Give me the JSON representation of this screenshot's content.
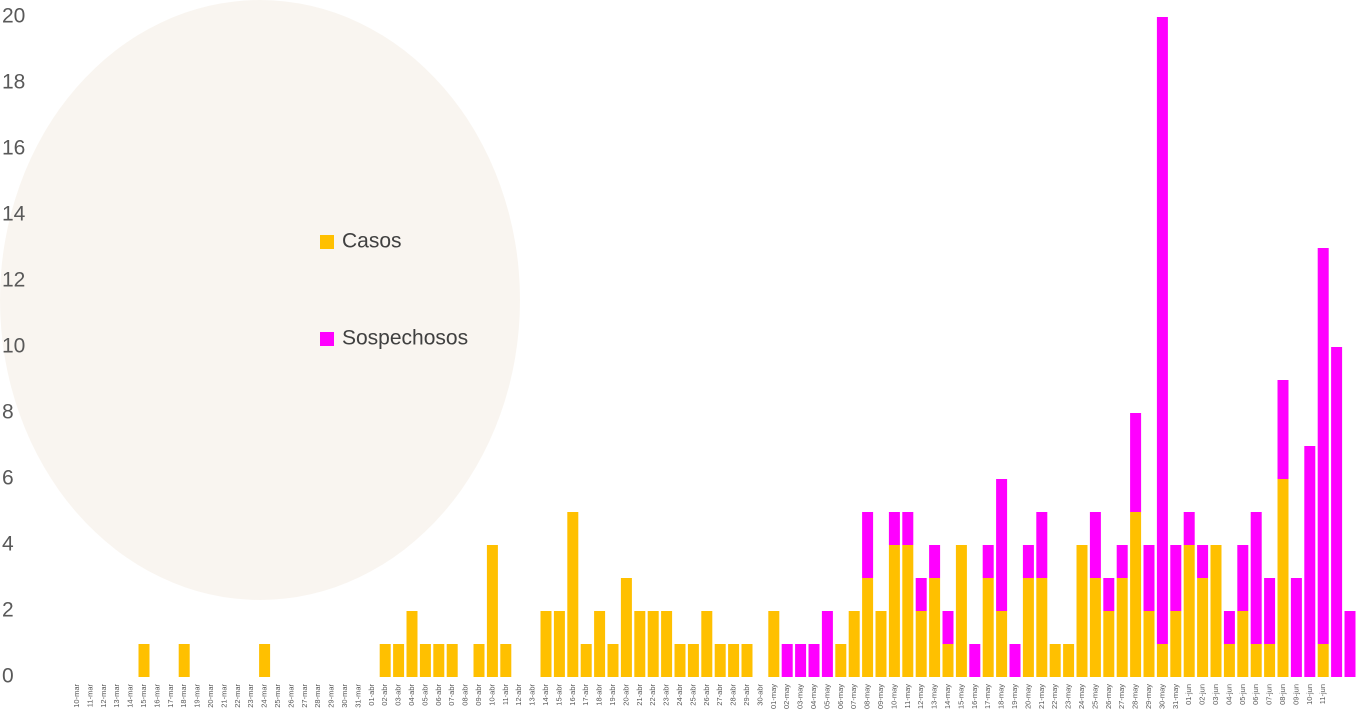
{
  "chart_data": {
    "type": "stacked-bar",
    "categories": [
      "10-mar",
      "11-mar",
      "12-mar",
      "13-mar",
      "14-mar",
      "15-mar",
      "16-mar",
      "17-mar",
      "18-mar",
      "19-mar",
      "20-mar",
      "21-mar",
      "22-mar",
      "23-mar",
      "24-mar",
      "25-mar",
      "26-mar",
      "27-mar",
      "28-mar",
      "29-mar",
      "30-mar",
      "31-mar",
      "01-abr",
      "02-abr",
      "03-abr",
      "04-abr",
      "05-abr",
      "06-abr",
      "07-abr",
      "08-abr",
      "09-abr",
      "10-abr",
      "11-abr",
      "12-abr",
      "13-abr",
      "14-abr",
      "15-abr",
      "16-abr",
      "17-abr",
      "18-abr",
      "19-abr",
      "20-abr",
      "21-abr",
      "22-abr",
      "23-abr",
      "24-abr",
      "25-abr",
      "26-abr",
      "27-abr",
      "28-abr",
      "29-abr",
      "30-abr",
      "01-may",
      "02-may",
      "03-may",
      "04-may",
      "05-may",
      "06-may",
      "07-may",
      "08-may",
      "09-may",
      "10-may",
      "11-may",
      "12-may",
      "13-may",
      "14-may",
      "15-may",
      "16-may",
      "17-may",
      "18-may",
      "19-may",
      "20-may",
      "21-may",
      "22-may",
      "23-may",
      "24-may",
      "25-may",
      "26-may",
      "27-may",
      "28-may",
      "29-may",
      "30-may",
      "31-may",
      "01-jun",
      "02-jun",
      "03-jun",
      "04-jun",
      "05-jun",
      "06-jun",
      "07-jun",
      "08-jun",
      "09-jun",
      "10-jun",
      "11-jun",
      null,
      null
    ],
    "series": [
      {
        "name": "Casos",
        "color": "#ffc000",
        "values": [
          0,
          0,
          0,
          0,
          0,
          1,
          0,
          0,
          1,
          0,
          0,
          0,
          0,
          0,
          1,
          0,
          0,
          0,
          0,
          0,
          0,
          0,
          0,
          1,
          1,
          2,
          1,
          1,
          1,
          0,
          1,
          4,
          1,
          0,
          0,
          2,
          2,
          5,
          1,
          2,
          1,
          3,
          2,
          2,
          2,
          1,
          1,
          2,
          1,
          1,
          1,
          0,
          2,
          0,
          0,
          0,
          0,
          1,
          2,
          3,
          2,
          4,
          4,
          2,
          3,
          1,
          4,
          0,
          3,
          2,
          0,
          3,
          3,
          1,
          1,
          4,
          3,
          2,
          3,
          5,
          2,
          1,
          2,
          4,
          3,
          4,
          1,
          2,
          1,
          1,
          6,
          0,
          0,
          1,
          0,
          0
        ]
      },
      {
        "name": "Sospechosos",
        "color": "#ff00ff",
        "values": [
          0,
          0,
          0,
          0,
          0,
          0,
          0,
          0,
          0,
          0,
          0,
          0,
          0,
          0,
          0,
          0,
          0,
          0,
          0,
          0,
          0,
          0,
          0,
          0,
          0,
          0,
          0,
          0,
          0,
          0,
          0,
          0,
          0,
          0,
          0,
          0,
          0,
          0,
          0,
          0,
          0,
          0,
          0,
          0,
          0,
          0,
          0,
          0,
          0,
          0,
          0,
          0,
          0,
          1,
          1,
          1,
          2,
          0,
          0,
          2,
          0,
          1,
          1,
          1,
          1,
          1,
          0,
          1,
          1,
          4,
          1,
          1,
          2,
          0,
          0,
          0,
          2,
          1,
          1,
          3,
          2,
          19,
          2,
          1,
          1,
          0,
          1,
          2,
          4,
          2,
          3,
          3,
          7,
          12,
          10,
          2
        ]
      }
    ],
    "ylim": [
      0,
      20
    ],
    "yticks": [
      0,
      2,
      4,
      6,
      8,
      10,
      12,
      14,
      16,
      18,
      20
    ],
    "grid": false
  }
}
